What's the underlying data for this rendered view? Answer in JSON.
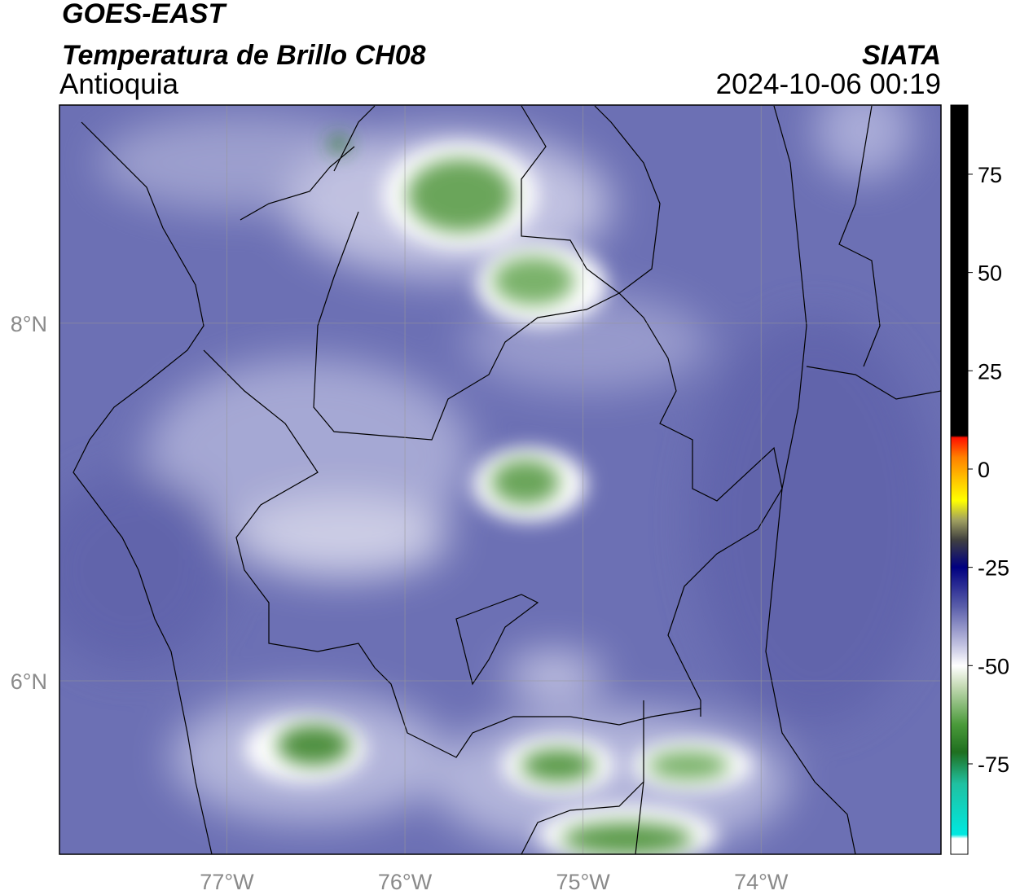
{
  "header": {
    "title": "GOES-EAST",
    "subtitle": "Temperatura de Brillo CH08",
    "region": "Antioquia",
    "source": "SIATA",
    "datetime": "2024-10-06 00:19"
  },
  "map": {
    "lon_range": [
      -77.94,
      -72.99
    ],
    "lat_range": [
      5.03,
      9.22
    ],
    "lon_ticks": [
      {
        "value": -77,
        "label": "77°W"
      },
      {
        "value": -76,
        "label": "76°W"
      },
      {
        "value": -75,
        "label": "75°W"
      },
      {
        "value": -74,
        "label": "74°W"
      }
    ],
    "lat_ticks": [
      {
        "value": 8,
        "label": "8°N"
      },
      {
        "value": 6,
        "label": "6°N"
      }
    ],
    "grid": true
  },
  "colorbar": {
    "range": [
      -98,
      92.6
    ],
    "ticks": [
      75,
      50,
      25,
      0,
      -25,
      -50,
      -75
    ],
    "colormap": [
      {
        "value": 92.6,
        "color": "#000000"
      },
      {
        "value": 8.5,
        "color": "#000000"
      },
      {
        "value": 8,
        "color": "#ff1000"
      },
      {
        "value": 3,
        "color": "#ff8000"
      },
      {
        "value": -3,
        "color": "#ffc800"
      },
      {
        "value": -8,
        "color": "#ffff00"
      },
      {
        "value": -13,
        "color": "#a0a060"
      },
      {
        "value": -18,
        "color": "#404040"
      },
      {
        "value": -25,
        "color": "#000080"
      },
      {
        "value": -35,
        "color": "#5a5eaa"
      },
      {
        "value": -45,
        "color": "#c4c4e2"
      },
      {
        "value": -50,
        "color": "#ffffff"
      },
      {
        "value": -55,
        "color": "#c8dcb8"
      },
      {
        "value": -65,
        "color": "#4a9a3a"
      },
      {
        "value": -72,
        "color": "#1f6f1f"
      },
      {
        "value": -80,
        "color": "#20c0a0"
      },
      {
        "value": -93,
        "color": "#00e8e0"
      },
      {
        "value": -94,
        "color": "#ffffff"
      },
      {
        "value": -98,
        "color": "#ffffff"
      }
    ]
  }
}
